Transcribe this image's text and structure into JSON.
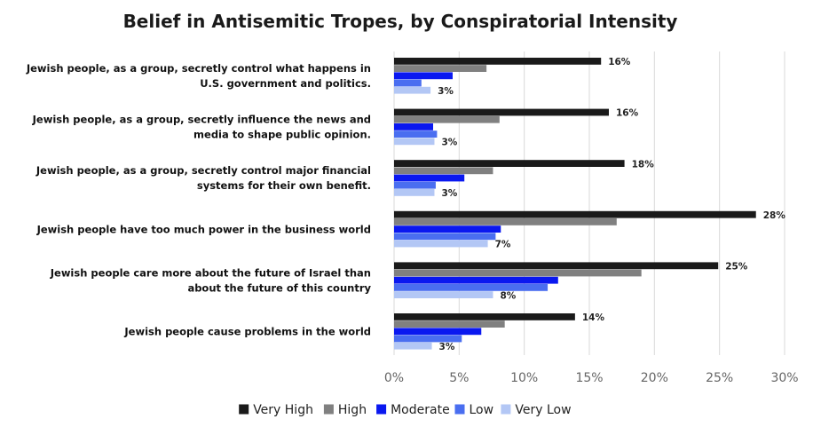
{
  "chart_data": {
    "type": "bar",
    "orientation": "horizontal",
    "title": "Belief in Antisemitic Tropes, by Conspiratorial Intensity",
    "categories": [
      [
        "Jewish people, as a group, secretly control what happens in",
        "U.S. government and politics."
      ],
      [
        "Jewish people, as a group, secretly influence the news and",
        "media to shape public opinion."
      ],
      [
        "Jewish people, as a group, secretly control major financial",
        "systems for their own benefit."
      ],
      [
        "Jewish people have too much power in the business world"
      ],
      [
        "Jewish people care more about the future of Israel than",
        "about the future of this country"
      ],
      [
        "Jewish people cause problems in the world"
      ]
    ],
    "series": [
      {
        "name": "Very High",
        "color": "#1a1a1a",
        "values": [
          15.9,
          16.5,
          17.7,
          27.8,
          24.9,
          13.9
        ]
      },
      {
        "name": "High",
        "color": "#808080",
        "values": [
          7.1,
          8.1,
          7.6,
          17.1,
          19.0,
          8.5
        ]
      },
      {
        "name": "Moderate",
        "color": "#0a18f0",
        "values": [
          4.5,
          3.0,
          5.4,
          8.2,
          12.6,
          6.7
        ]
      },
      {
        "name": "Low",
        "color": "#4a6ef0",
        "values": [
          2.1,
          3.3,
          3.2,
          7.8,
          11.8,
          5.2
        ]
      },
      {
        "name": "Very Low",
        "color": "#b3c7f5",
        "values": [
          2.8,
          3.1,
          3.1,
          7.2,
          7.6,
          2.9
        ]
      }
    ],
    "data_labels": {
      "Very High": [
        "16%",
        "16%",
        "18%",
        "28%",
        "25%",
        "14%"
      ],
      "Very Low": [
        "3%",
        "3%",
        "3%",
        "7%",
        "8%",
        "3%"
      ]
    },
    "x_ticks": [
      "0%",
      "5%",
      "10%",
      "15%",
      "20%",
      "25%",
      "30%"
    ],
    "xlim": [
      0,
      30
    ],
    "grid": true,
    "legend_position": "bottom"
  }
}
